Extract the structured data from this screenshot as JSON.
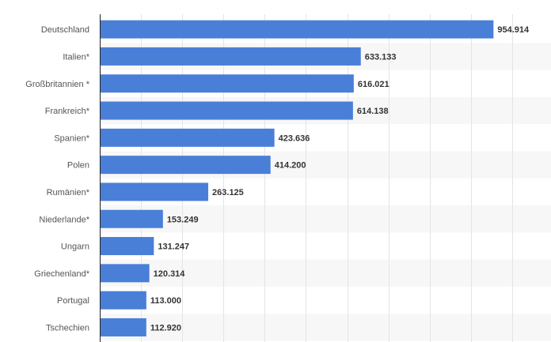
{
  "chart_data": {
    "type": "bar",
    "orientation": "horizontal",
    "title": "",
    "xlabel": "",
    "ylabel": "",
    "categories": [
      "Deutschland",
      "Italien*",
      "Großbritannien *",
      "Frankreich*",
      "Spanien*",
      "Polen",
      "Rumänien*",
      "Niederlande*",
      "Ungarn",
      "Griechenland*",
      "Portugal",
      "Tschechien"
    ],
    "values": [
      954914,
      633133,
      616021,
      614138,
      423636,
      414200,
      263125,
      153249,
      131247,
      120314,
      113000,
      112920
    ],
    "value_labels": [
      "954.914",
      "633.133",
      "616.021",
      "614.138",
      "423.636",
      "414.200",
      "263.125",
      "153.249",
      "131.247",
      "120.314",
      "113.000",
      "112.920"
    ],
    "xlim": [
      0,
      1000000
    ],
    "gridlines": "vertical",
    "bar_color": "#4a7fd8",
    "stripe_color": "#f7f7f7",
    "axis_color": "#222222",
    "grid_color": "#e4e4e4"
  }
}
